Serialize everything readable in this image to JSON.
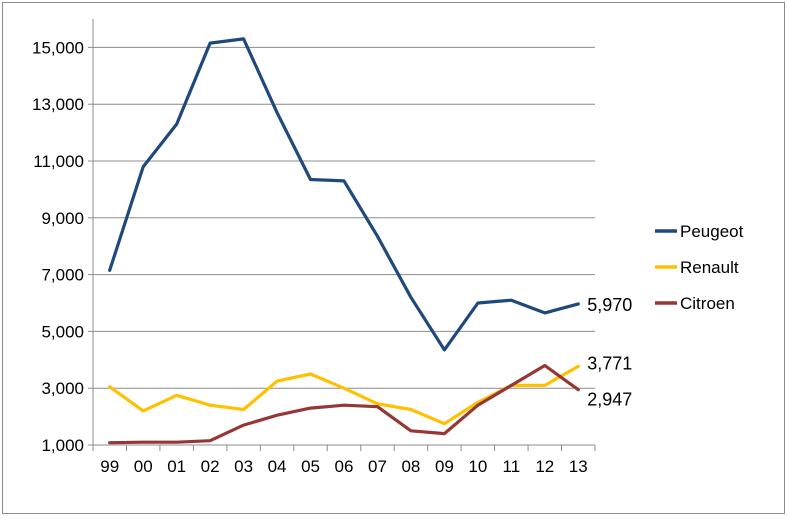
{
  "chart_data": {
    "type": "line",
    "title": "",
    "xlabel": "",
    "ylabel": "",
    "categories": [
      "99",
      "00",
      "01",
      "02",
      "03",
      "04",
      "05",
      "06",
      "07",
      "08",
      "09",
      "10",
      "11",
      "12",
      "13"
    ],
    "ylim": [
      1000,
      16000
    ],
    "yticks": [
      1000,
      3000,
      5000,
      7000,
      9000,
      11000,
      13000,
      15000
    ],
    "ytick_labels": [
      "1,000",
      "3,000",
      "5,000",
      "7,000",
      "9,000",
      "11,000",
      "13,000",
      "15,000"
    ],
    "grid": "horizontal",
    "legend_position": "right",
    "series": [
      {
        "name": "Peugeot",
        "color": "#1f497d",
        "values": [
          7150,
          10800,
          12300,
          15150,
          15300,
          12700,
          10350,
          10300,
          8350,
          6200,
          4350,
          6000,
          6100,
          5650,
          5970
        ],
        "end_label": "5,970"
      },
      {
        "name": "Renault",
        "color": "#ffc000",
        "values": [
          3050,
          2200,
          2750,
          2400,
          2250,
          3250,
          3500,
          3000,
          2450,
          2250,
          1750,
          2500,
          3100,
          3100,
          3771
        ],
        "end_label": "3,771"
      },
      {
        "name": "Citroen",
        "color": "#953735",
        "values": [
          1080,
          1100,
          1100,
          1150,
          1700,
          2050,
          2300,
          2400,
          2350,
          1500,
          1400,
          2400,
          3100,
          3800,
          2947
        ],
        "end_label": "2,947"
      }
    ]
  }
}
